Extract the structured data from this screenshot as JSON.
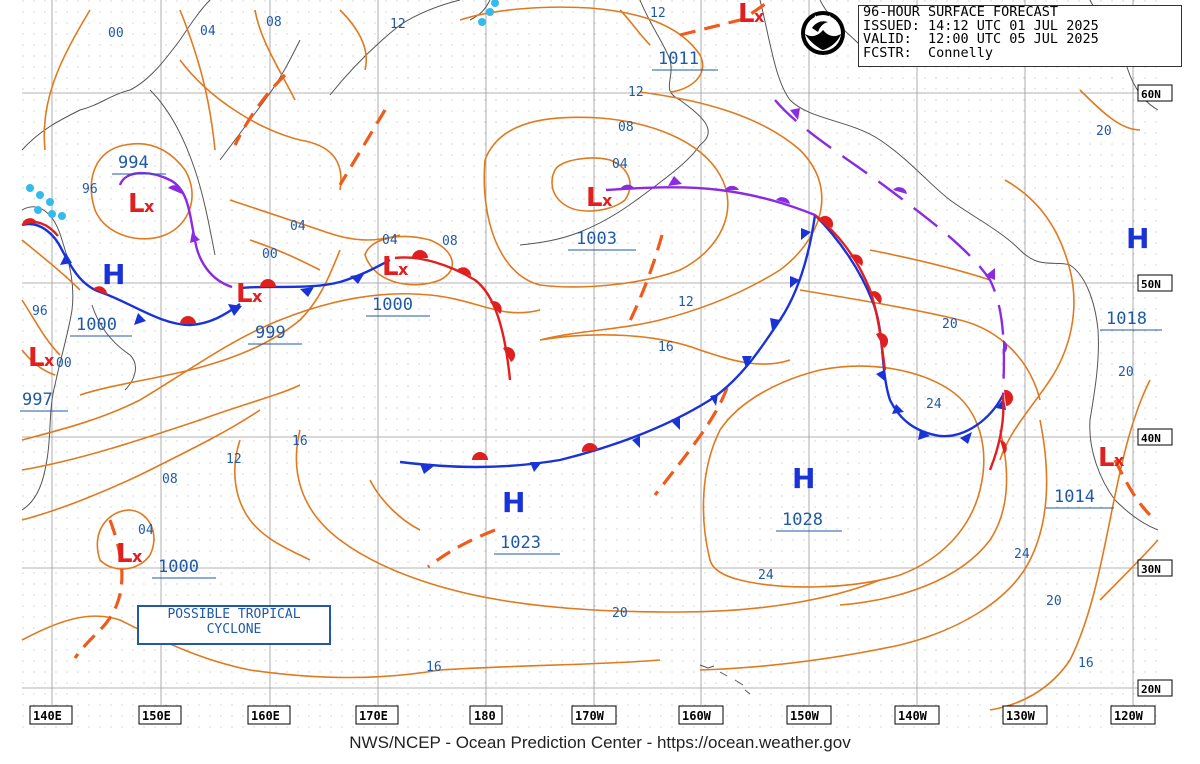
{
  "header": {
    "title_line": "96-HOUR SURFACE FORECAST",
    "issued_line": "ISSUED: 14:12 UTC 01 JUL 2025",
    "valid_line": "VALID:  12:00 UTC 05 JUL 2025",
    "forecaster_line": "FCSTR:  Connelly"
  },
  "logo": {
    "text": "NOAA",
    "icon": "noaa-logo-icon"
  },
  "footer": {
    "credit": "NWS/NCEP - Ocean Prediction Center - https://ocean.weather.gov"
  },
  "annotation": {
    "line1": "POSSIBLE TROPICAL",
    "line2": "CYCLONE"
  },
  "longitude_labels": [
    "140E",
    "150E",
    "160E",
    "170E",
    "180",
    "170W",
    "160W",
    "150W",
    "140W",
    "130W",
    "120W"
  ],
  "latitude_labels": [
    "60N",
    "50N",
    "40N",
    "30N",
    "20N"
  ],
  "pressure_centers": [
    {
      "type": "L",
      "value": "994"
    },
    {
      "type": "H",
      "value": "1000"
    },
    {
      "type": "L",
      "value": "997"
    },
    {
      "type": "L",
      "value": "999"
    },
    {
      "type": "L",
      "value": "1000"
    },
    {
      "type": "L",
      "value": "1003"
    },
    {
      "type": "L",
      "value": "1011"
    },
    {
      "type": "H",
      "value": "1023"
    },
    {
      "type": "H",
      "value": "1028"
    },
    {
      "type": "H",
      "value": "1018"
    },
    {
      "type": "L",
      "value": "1014"
    },
    {
      "type": "L",
      "value": "1000"
    }
  ],
  "isobar_labels": [
    "00",
    "04",
    "08",
    "12",
    "12",
    "96",
    "04",
    "00",
    "04",
    "08",
    "08",
    "04",
    "12",
    "16",
    "16",
    "12",
    "08",
    "04",
    "20",
    "20",
    "24",
    "24",
    "20",
    "16",
    "20",
    "24",
    "16",
    "96",
    "00",
    "20",
    "12"
  ],
  "colors": {
    "isobar": "#e07a1f",
    "label": "#1f5aa8",
    "high": "#1a33d6",
    "low": "#e02020",
    "cold_front": "#1a33d6",
    "warm_front": "#e02020",
    "occluded": "#8a2be2",
    "trough": "#f05a1a"
  }
}
